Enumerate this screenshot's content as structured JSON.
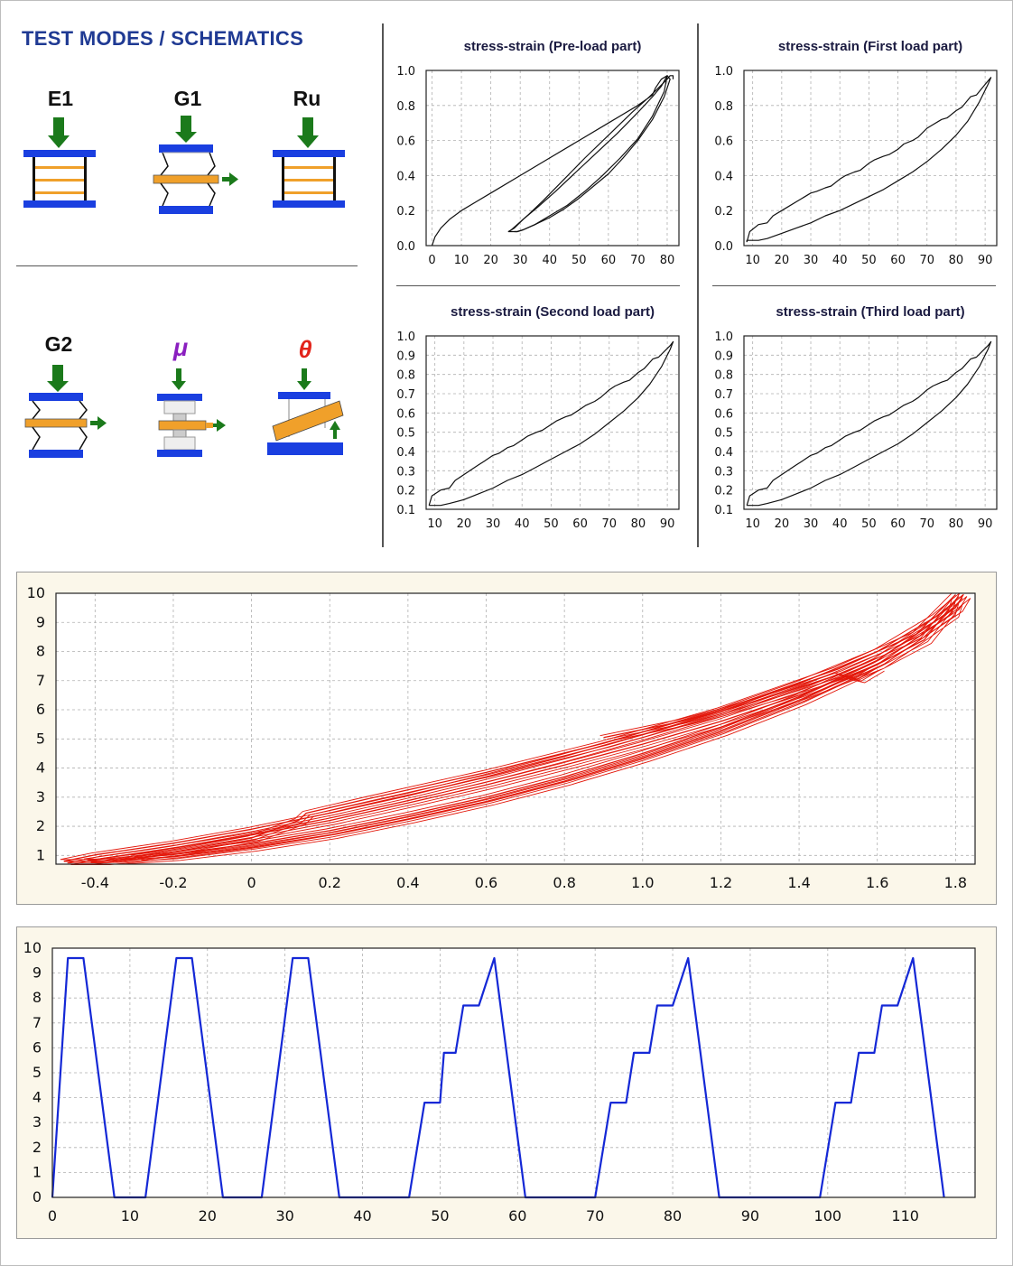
{
  "header": {
    "title": "TEST MODES / SCHEMATICS",
    "color": "#1f3a93"
  },
  "test_modes": [
    {
      "label": "E1",
      "icon": "compression-schematic-icon",
      "label_color": "#111111"
    },
    {
      "label": "G1",
      "icon": "single-shear-schematic-icon",
      "label_color": "#111111"
    },
    {
      "label": "Ru",
      "icon": "compression-schematic-icon",
      "label_color": "#111111"
    },
    {
      "label": "G2",
      "icon": "double-shear-schematic-icon",
      "label_color": "#111111"
    },
    {
      "label": "μ",
      "icon": "friction-schematic-icon",
      "label_color": "#8a1fbf"
    },
    {
      "label": "θ",
      "icon": "rotation-schematic-icon",
      "label_color": "#e2231a"
    }
  ],
  "colors": {
    "plate": "#1a3fe0",
    "arrow": "#1b7a1b",
    "orange": "#f0a02a",
    "red_curve": "#e3170a",
    "blue_curve": "#1428d6",
    "panel_bg": "#fbf7ea",
    "grid": "#b0b0b0"
  },
  "chart_data": [
    {
      "id": "preload",
      "type": "line",
      "title": "stress-strain (Pre-load part)",
      "xlim": [
        -2,
        84
      ],
      "ylim": [
        0,
        1
      ],
      "xticks": [
        "0",
        "10",
        "20",
        "30",
        "40",
        "50",
        "60",
        "70",
        "80"
      ],
      "yticks": [
        "0.0",
        "0.2",
        "0.4",
        "0.6",
        "0.8",
        "1.0"
      ],
      "series": [
        {
          "x": [
            0,
            1,
            3,
            6,
            10,
            15,
            20,
            30,
            40,
            50,
            60,
            70,
            75,
            76,
            78,
            80,
            81,
            79,
            75,
            70,
            65,
            60,
            55,
            50,
            45,
            40,
            35,
            31,
            29,
            27,
            26,
            27,
            29,
            33,
            38,
            45,
            52,
            60,
            68,
            74,
            77,
            80,
            81,
            82,
            82,
            82
          ],
          "y": [
            0,
            0.05,
            0.1,
            0.15,
            0.2,
            0.25,
            0.3,
            0.4,
            0.5,
            0.6,
            0.7,
            0.8,
            0.86,
            0.9,
            0.95,
            0.97,
            0.95,
            0.85,
            0.72,
            0.6,
            0.5,
            0.41,
            0.34,
            0.27,
            0.21,
            0.16,
            0.12,
            0.09,
            0.08,
            0.08,
            0.08,
            0.09,
            0.12,
            0.18,
            0.26,
            0.38,
            0.5,
            0.63,
            0.76,
            0.85,
            0.9,
            0.95,
            0.97,
            0.97,
            0.96,
            0.95
          ]
        },
        {
          "x": [
            26,
            28,
            31,
            36,
            42,
            49,
            56,
            63,
            70,
            75,
            78,
            80,
            79,
            75,
            70,
            64,
            58,
            52,
            46,
            40,
            35,
            31,
            29,
            28
          ],
          "y": [
            0.08,
            0.1,
            0.15,
            0.22,
            0.31,
            0.42,
            0.53,
            0.64,
            0.76,
            0.85,
            0.91,
            0.97,
            0.88,
            0.74,
            0.61,
            0.5,
            0.4,
            0.31,
            0.23,
            0.17,
            0.12,
            0.09,
            0.08,
            0.08
          ]
        }
      ]
    },
    {
      "id": "first",
      "type": "line",
      "title": "stress-strain (First load part)",
      "xlim": [
        7,
        94
      ],
      "ylim": [
        0,
        1
      ],
      "xticks": [
        "10",
        "20",
        "30",
        "40",
        "50",
        "60",
        "70",
        "80",
        "90"
      ],
      "yticks": [
        "0.0",
        "0.2",
        "0.4",
        "0.6",
        "0.8",
        "1.0"
      ],
      "series": [
        {
          "x": [
            8,
            9,
            12,
            15,
            17,
            20,
            22,
            25,
            27,
            30,
            32,
            35,
            37,
            40,
            42,
            45,
            47,
            50,
            52,
            55,
            57,
            60,
            62,
            65,
            67,
            70,
            72,
            75,
            77,
            80,
            82,
            85,
            87,
            89,
            91,
            92,
            91,
            88,
            84,
            80,
            75,
            70,
            65,
            60,
            55,
            50,
            45,
            40,
            35,
            30,
            25,
            20,
            15,
            12,
            10,
            8,
            8
          ],
          "y": [
            0.02,
            0.08,
            0.12,
            0.13,
            0.17,
            0.2,
            0.22,
            0.25,
            0.27,
            0.3,
            0.31,
            0.33,
            0.34,
            0.38,
            0.4,
            0.42,
            0.43,
            0.47,
            0.49,
            0.51,
            0.52,
            0.55,
            0.58,
            0.6,
            0.62,
            0.67,
            0.69,
            0.72,
            0.73,
            0.77,
            0.79,
            0.85,
            0.86,
            0.9,
            0.94,
            0.96,
            0.92,
            0.82,
            0.71,
            0.63,
            0.55,
            0.48,
            0.42,
            0.37,
            0.32,
            0.28,
            0.24,
            0.2,
            0.17,
            0.13,
            0.1,
            0.07,
            0.04,
            0.03,
            0.03,
            0.03,
            0.02
          ]
        }
      ]
    },
    {
      "id": "second",
      "type": "line",
      "title": "stress-strain (Second load part)",
      "xlim": [
        7,
        94
      ],
      "ylim": [
        0.1,
        1
      ],
      "xticks": [
        "10",
        "20",
        "30",
        "40",
        "50",
        "60",
        "70",
        "80",
        "90"
      ],
      "yticks": [
        "0.1",
        "0.2",
        "0.3",
        "0.4",
        "0.5",
        "0.6",
        "0.7",
        "0.8",
        "0.9",
        "1.0"
      ],
      "series": [
        {
          "x": [
            8,
            9,
            12,
            15,
            17,
            20,
            22,
            25,
            27,
            30,
            32,
            35,
            37,
            40,
            42,
            45,
            47,
            50,
            52,
            55,
            57,
            60,
            62,
            65,
            67,
            70,
            72,
            75,
            77,
            80,
            82,
            85,
            87,
            89,
            91,
            92,
            91,
            88,
            84,
            80,
            75,
            70,
            65,
            60,
            55,
            50,
            45,
            40,
            35,
            30,
            25,
            20,
            15,
            12,
            10,
            8,
            8
          ],
          "y": [
            0.12,
            0.17,
            0.2,
            0.21,
            0.25,
            0.28,
            0.3,
            0.33,
            0.35,
            0.38,
            0.39,
            0.42,
            0.43,
            0.46,
            0.48,
            0.5,
            0.51,
            0.54,
            0.56,
            0.58,
            0.59,
            0.62,
            0.64,
            0.66,
            0.68,
            0.72,
            0.74,
            0.76,
            0.77,
            0.81,
            0.83,
            0.88,
            0.89,
            0.92,
            0.95,
            0.97,
            0.93,
            0.84,
            0.75,
            0.68,
            0.61,
            0.55,
            0.49,
            0.44,
            0.4,
            0.36,
            0.32,
            0.28,
            0.25,
            0.21,
            0.18,
            0.15,
            0.13,
            0.12,
            0.12,
            0.12,
            0.12
          ]
        }
      ]
    },
    {
      "id": "third",
      "type": "line",
      "title": "stress-strain (Third load part)",
      "xlim": [
        7,
        94
      ],
      "ylim": [
        0.1,
        1
      ],
      "xticks": [
        "10",
        "20",
        "30",
        "40",
        "50",
        "60",
        "70",
        "80",
        "90"
      ],
      "yticks": [
        "0.1",
        "0.2",
        "0.3",
        "0.4",
        "0.5",
        "0.6",
        "0.7",
        "0.8",
        "0.9",
        "1.0"
      ],
      "series": [
        {
          "x": [
            8,
            9,
            12,
            15,
            17,
            20,
            22,
            25,
            27,
            30,
            32,
            35,
            37,
            40,
            42,
            45,
            47,
            50,
            52,
            55,
            57,
            60,
            62,
            65,
            67,
            70,
            72,
            75,
            77,
            80,
            82,
            85,
            87,
            89,
            91,
            92,
            91,
            88,
            84,
            80,
            75,
            70,
            65,
            60,
            55,
            50,
            45,
            40,
            35,
            30,
            25,
            20,
            15,
            12,
            10,
            8,
            8
          ],
          "y": [
            0.12,
            0.17,
            0.2,
            0.21,
            0.25,
            0.28,
            0.3,
            0.33,
            0.35,
            0.38,
            0.39,
            0.42,
            0.43,
            0.46,
            0.48,
            0.5,
            0.51,
            0.54,
            0.56,
            0.58,
            0.59,
            0.62,
            0.64,
            0.66,
            0.68,
            0.72,
            0.74,
            0.76,
            0.77,
            0.81,
            0.83,
            0.88,
            0.89,
            0.92,
            0.95,
            0.97,
            0.93,
            0.84,
            0.75,
            0.68,
            0.61,
            0.55,
            0.49,
            0.44,
            0.4,
            0.36,
            0.32,
            0.28,
            0.25,
            0.21,
            0.18,
            0.15,
            0.13,
            0.12,
            0.12,
            0.12,
            0.12
          ]
        }
      ]
    },
    {
      "id": "hysteresis",
      "type": "line",
      "title": "",
      "xlim": [
        -0.5,
        1.85
      ],
      "ylim": [
        0.7,
        10
      ],
      "xticks": [
        "-0.4",
        "-0.2",
        "0",
        "0.2",
        "0.4",
        "0.6",
        "0.8",
        "1.0",
        "1.2",
        "1.4",
        "1.6",
        "1.8"
      ],
      "yticks": [
        "1",
        "2",
        "3",
        "4",
        "5",
        "6",
        "7",
        "8",
        "9",
        "10"
      ],
      "series": [
        {
          "x": [
            -0.48,
            -0.4,
            -0.2,
            0,
            0.2,
            0.4,
            0.6,
            0.8,
            1.0,
            1.2,
            1.4,
            1.6,
            1.75,
            1.82,
            1.8,
            1.7,
            1.6,
            1.4,
            1.2,
            1.0,
            0.8,
            0.6,
            0.4,
            0.2,
            0,
            -0.2,
            -0.38,
            -0.48
          ],
          "y": [
            0.8,
            1.02,
            1.42,
            1.9,
            2.45,
            3.05,
            3.7,
            4.4,
            5.15,
            5.95,
            6.9,
            8.0,
            9.2,
            9.95,
            9.5,
            8.6,
            7.7,
            6.45,
            5.4,
            4.5,
            3.7,
            3.0,
            2.4,
            1.85,
            1.4,
            1.05,
            0.8,
            0.8
          ]
        },
        {
          "x": [
            -0.42,
            -0.3,
            -0.2,
            0,
            0.2,
            0.4,
            0.6,
            0.8,
            1.0,
            1.2,
            1.4,
            1.6,
            1.72,
            1.8,
            1.79,
            1.7,
            1.6,
            1.4,
            1.2,
            1.0,
            0.8,
            0.6,
            0.4,
            0.2,
            0,
            -0.2,
            -0.35,
            -0.42
          ],
          "y": [
            0.82,
            1.05,
            1.25,
            1.7,
            2.2,
            2.8,
            3.42,
            4.1,
            4.82,
            5.6,
            6.5,
            7.55,
            8.4,
            9.75,
            9.3,
            8.45,
            7.55,
            6.3,
            5.25,
            4.35,
            3.55,
            2.85,
            2.25,
            1.7,
            1.28,
            0.95,
            0.82,
            0.82
          ]
        },
        {
          "x": [
            -0.3,
            -0.2,
            0,
            0.12,
            0.14,
            0.3,
            0.6,
            0.9,
            1.2,
            1.5,
            1.7,
            1.8
          ],
          "y": [
            0.95,
            1.12,
            1.6,
            2.2,
            2.45,
            2.95,
            3.85,
            4.85,
            6.0,
            7.4,
            8.6,
            9.95
          ]
        },
        {
          "x": [
            0.9,
            1.1,
            1.2,
            1.35,
            1.5,
            1.55,
            1.6
          ],
          "y": [
            5.05,
            5.6,
            5.95,
            6.55,
            7.2,
            7.05,
            7.45
          ]
        }
      ]
    },
    {
      "id": "timeseries",
      "type": "line",
      "title": "",
      "xlim": [
        0,
        119
      ],
      "ylim": [
        0,
        10
      ],
      "xticks": [
        "0",
        "10",
        "20",
        "30",
        "40",
        "50",
        "60",
        "70",
        "80",
        "90",
        "100",
        "110"
      ],
      "tick_values": [
        0,
        10,
        20,
        30,
        40,
        50,
        60,
        70,
        80,
        90,
        100,
        110
      ],
      "yticks": [
        "0",
        "1",
        "2",
        "3",
        "4",
        "5",
        "6",
        "7",
        "8",
        "9",
        "10"
      ],
      "series": [
        {
          "x": [
            0,
            2,
            4,
            8,
            12,
            16,
            18,
            22,
            27,
            31,
            33,
            37,
            46,
            48,
            50,
            50.5,
            52,
            53,
            55,
            57,
            61,
            70,
            72,
            74,
            75,
            77,
            78,
            80,
            82,
            86,
            99,
            101,
            103,
            104,
            106,
            107,
            109,
            111,
            115
          ],
          "y": [
            0,
            9.6,
            9.6,
            0,
            0,
            9.6,
            9.6,
            0,
            0,
            9.6,
            9.6,
            0,
            0,
            3.8,
            3.8,
            5.8,
            5.8,
            7.7,
            7.7,
            9.6,
            0,
            0,
            3.8,
            3.8,
            5.8,
            5.8,
            7.7,
            7.7,
            9.6,
            0,
            0,
            3.8,
            3.8,
            5.8,
            5.8,
            7.7,
            7.7,
            9.6,
            0
          ]
        }
      ]
    }
  ]
}
